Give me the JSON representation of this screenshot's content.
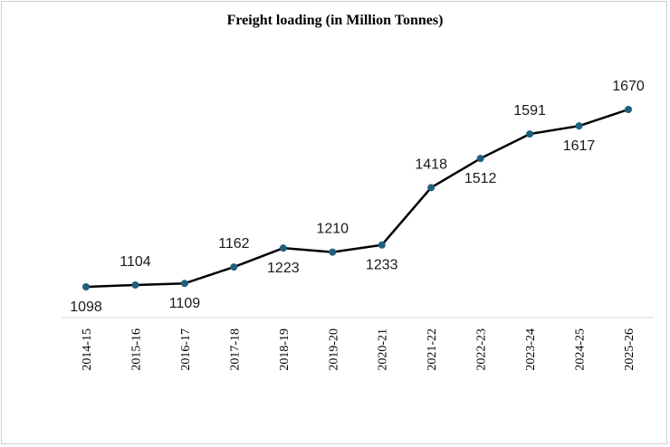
{
  "chart_data": {
    "type": "line",
    "title": "Freight loading (in Million Tonnes)",
    "xlabel": "",
    "ylabel": "",
    "categories": [
      "2014-15",
      "2015-16",
      "2016-17",
      "2017-18",
      "2018-19",
      "2019-20",
      "2020-21",
      "2021-22",
      "2022-23",
      "2023-24",
      "2024-25",
      "2025-26"
    ],
    "series": [
      {
        "values": [
          1098,
          1104,
          1109,
          1162,
          1223,
          1210,
          1233,
          1418,
          1512,
          1591,
          1617,
          1670
        ]
      }
    ],
    "ylim": [
      900,
      1800
    ],
    "grid": false,
    "legend": "none",
    "colors": {
      "line": "#000000",
      "marker": "#1f5f7f"
    }
  }
}
